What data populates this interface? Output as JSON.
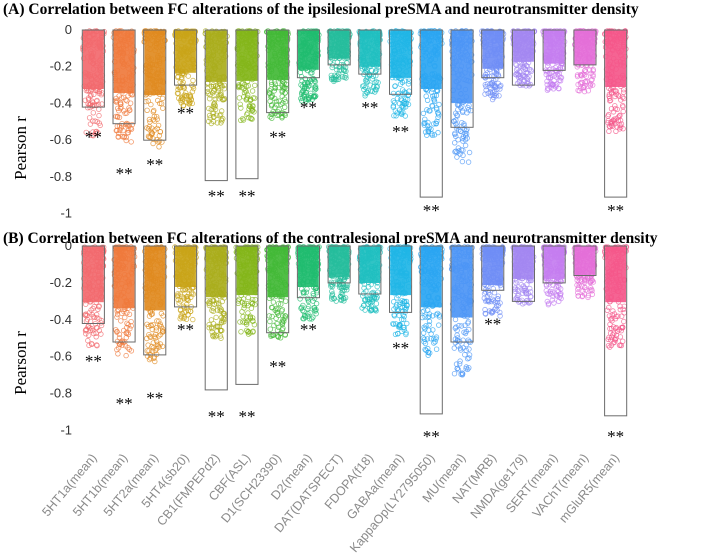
{
  "chart_data": [
    {
      "type": "bar",
      "title": "(A) Correlation between FC alterations of the ipsilesional preSMA and neurotransmitter density",
      "ylabel": "Pearson r",
      "xlabel": "",
      "ylim": [
        -1.1,
        0
      ],
      "yticks": [
        0,
        -0.2,
        -0.4,
        -0.6,
        -0.8,
        -1
      ],
      "ytick_labels": [
        "0",
        "-0.2",
        "-0.4",
        "-0.6",
        "-0.8",
        "-1"
      ],
      "categories": [
        "5HT1a(mean)",
        "5HT1b(mean)",
        "5HT2a(mean)",
        "5HT4(sb20)",
        "CB1(FMPEPd2)",
        "CBF(ASL)",
        "D1(SCH23390)",
        "D2(mean)",
        "DAT(DATSPECT)",
        "FDOPA(f18)",
        "GABAa(mean)",
        "KappaOp(LY2795050)",
        "MU(mean)",
        "NAT(MRB)",
        "NMDA(ge179)",
        "SERT(mean)",
        "VAChT(mean)",
        "mGluR5(mean)"
      ],
      "values": [
        -0.42,
        -0.51,
        -0.6,
        -0.3,
        -0.82,
        -0.81,
        -0.45,
        -0.26,
        -0.19,
        -0.24,
        -0.35,
        -0.91,
        -0.53,
        -0.26,
        -0.3,
        -0.22,
        -0.19,
        -0.91
      ],
      "cloud_min": [
        -0.58,
        -0.62,
        -0.64,
        -0.42,
        -0.51,
        -0.5,
        -0.49,
        -0.39,
        -0.28,
        -0.36,
        -0.47,
        -0.58,
        -0.72,
        -0.38,
        -0.31,
        -0.33,
        -0.34,
        -0.56
      ],
      "significance": [
        "**",
        "**",
        "**",
        "**",
        "**",
        "**",
        "**",
        "**",
        "",
        "**",
        "**",
        "**",
        "",
        "",
        "",
        "",
        "",
        "**"
      ],
      "sig_y": [
        -0.58,
        -0.78,
        -0.73,
        -0.45,
        -0.9,
        -0.9,
        -0.58,
        -0.42,
        null,
        -0.42,
        -0.55,
        -0.98,
        null,
        null,
        null,
        null,
        null,
        -0.98
      ],
      "colors": [
        "#f2696e",
        "#ef7a3c",
        "#e08a1f",
        "#c9a418",
        "#a9ad1b",
        "#83b519",
        "#42b836",
        "#1fbc6f",
        "#25bd9c",
        "#1fbfc0",
        "#1fb5e6",
        "#2aa5f2",
        "#4c95f5",
        "#6f8df5",
        "#a387f1",
        "#c47df0",
        "#e46fd8",
        "#f4578a"
      ],
      "grid": false,
      "legend": "none"
    },
    {
      "type": "bar",
      "title": "(B) Correlation between FC alterations of the contralesional preSMA and neurotransmitter density",
      "ylabel": "Pearson r",
      "xlabel": "",
      "ylim": [
        -1.1,
        0
      ],
      "yticks": [
        0,
        -0.2,
        -0.4,
        -0.6,
        -0.8,
        -1
      ],
      "ytick_labels": [
        "0",
        "-0.2",
        "-0.4",
        "-0.6",
        "-0.8",
        "-1"
      ],
      "categories": [
        "5HT1a(mean)",
        "5HT1b(mean)",
        "5HT2a(mean)",
        "5HT4(sb20)",
        "CB1(FMPEPd2)",
        "CBF(ASL)",
        "D1(SCH23390)",
        "D2(mean)",
        "DAT(DATSPECT)",
        "FDOPA(f18)",
        "GABAa(mean)",
        "KappaOp(LY2795050)",
        "MU(mean)",
        "NAT(MRB)",
        "NMDA(ge179)",
        "SERT(mean)",
        "VAChT(mean)",
        "mGluR5(mean)"
      ],
      "values": [
        -0.42,
        -0.52,
        -0.59,
        -0.33,
        -0.78,
        -0.75,
        -0.47,
        -0.28,
        -0.2,
        -0.26,
        -0.36,
        -0.91,
        -0.52,
        -0.24,
        -0.3,
        -0.2,
        -0.16,
        -0.92
      ],
      "cloud_min": [
        -0.55,
        -0.61,
        -0.63,
        -0.4,
        -0.5,
        -0.48,
        -0.5,
        -0.4,
        -0.3,
        -0.36,
        -0.48,
        -0.6,
        -0.7,
        -0.38,
        -0.32,
        -0.32,
        -0.28,
        -0.55
      ],
      "significance": [
        "**",
        "**",
        "**",
        "**",
        "**",
        "**",
        "**",
        "**",
        "",
        "",
        "**",
        "**",
        "",
        "**",
        "",
        "",
        "",
        "**"
      ],
      "sig_y": [
        -0.62,
        -0.85,
        -0.82,
        -0.45,
        -0.92,
        -0.92,
        -0.65,
        -0.45,
        null,
        null,
        -0.55,
        -1.03,
        null,
        -0.42,
        null,
        null,
        null,
        -1.03
      ],
      "colors": [
        "#f2696e",
        "#ef7a3c",
        "#e08a1f",
        "#c9a418",
        "#a9ad1b",
        "#83b519",
        "#42b836",
        "#1fbc6f",
        "#25bd9c",
        "#1fbfc0",
        "#1fb5e6",
        "#2aa5f2",
        "#4c95f5",
        "#6f8df5",
        "#a387f1",
        "#c47df0",
        "#e46fd8",
        "#f4578a"
      ],
      "grid": false,
      "legend": "none"
    }
  ]
}
